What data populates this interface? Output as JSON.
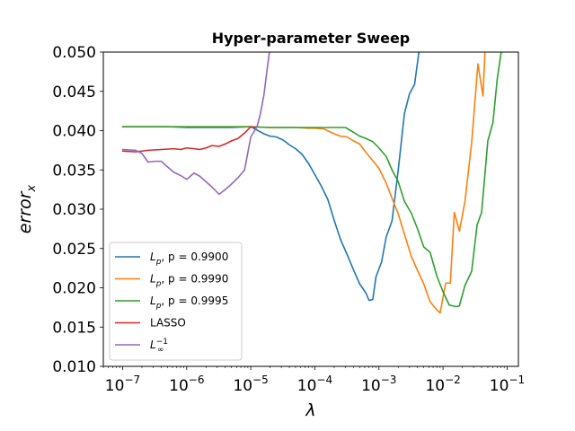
{
  "chart_data": {
    "type": "line",
    "title": "Hyper-parameter Sweep",
    "xlabel": "λ",
    "ylabel_base": "error",
    "ylabel_sub": "x",
    "xscale": "log",
    "xlim": [
      5e-08,
      0.15
    ],
    "ylim": [
      0.01,
      0.05
    ],
    "xticks": [
      {
        "value": 1e-07,
        "label": "10",
        "exp": "−7"
      },
      {
        "value": 1e-06,
        "label": "10",
        "exp": "−6"
      },
      {
        "value": 1e-05,
        "label": "10",
        "exp": "−5"
      },
      {
        "value": 0.0001,
        "label": "10",
        "exp": "−4"
      },
      {
        "value": 0.001,
        "label": "10",
        "exp": "−3"
      },
      {
        "value": 0.01,
        "label": "10",
        "exp": "−2"
      },
      {
        "value": 0.1,
        "label": "10",
        "exp": "−1"
      }
    ],
    "yticks": [
      {
        "value": 0.01,
        "label": "0.010"
      },
      {
        "value": 0.015,
        "label": "0.015"
      },
      {
        "value": 0.02,
        "label": "0.020"
      },
      {
        "value": 0.025,
        "label": "0.025"
      },
      {
        "value": 0.03,
        "label": "0.030"
      },
      {
        "value": 0.035,
        "label": "0.035"
      },
      {
        "value": 0.04,
        "label": "0.040"
      },
      {
        "value": 0.045,
        "label": "0.045"
      },
      {
        "value": 0.05,
        "label": "0.050"
      }
    ],
    "legend_position": "lower-left",
    "grid": false,
    "series": [
      {
        "name": "L_p, p = 0.9900",
        "legend_main": "L",
        "legend_sub": "p",
        "legend_rest": ", p = 0.9900",
        "color": "#1f77b4",
        "points": [
          [
            1e-07,
            0.0405
          ],
          [
            2e-07,
            0.0405
          ],
          [
            5e-07,
            0.0405
          ],
          [
            1e-06,
            0.0404
          ],
          [
            2e-06,
            0.0404
          ],
          [
            5e-06,
            0.0404
          ],
          [
            1e-05,
            0.0405
          ],
          [
            1.3e-05,
            0.04
          ],
          [
            1.6e-05,
            0.0396
          ],
          [
            2e-05,
            0.0393
          ],
          [
            2.5e-05,
            0.0392
          ],
          [
            3.2e-05,
            0.0388
          ],
          [
            4e-05,
            0.0382
          ],
          [
            5e-05,
            0.0377
          ],
          [
            6.3e-05,
            0.037
          ],
          [
            8e-05,
            0.0358
          ],
          [
            0.0001,
            0.0344
          ],
          [
            0.000125,
            0.033
          ],
          [
            0.00016,
            0.0312
          ],
          [
            0.0002,
            0.0286
          ],
          [
            0.00025,
            0.0262
          ],
          [
            0.00032,
            0.0242
          ],
          [
            0.0004,
            0.0223
          ],
          [
            0.0005,
            0.0205
          ],
          [
            0.00063,
            0.0193
          ],
          [
            0.0007,
            0.0184
          ],
          [
            0.0008,
            0.0185
          ],
          [
            0.0009,
            0.0214
          ],
          [
            0.0011,
            0.0233
          ],
          [
            0.0013,
            0.0265
          ],
          [
            0.0016,
            0.0285
          ],
          [
            0.002,
            0.035
          ],
          [
            0.0025,
            0.0422
          ],
          [
            0.003,
            0.0447
          ],
          [
            0.0036,
            0.0459
          ],
          [
            0.0042,
            0.05
          ],
          [
            0.0045,
            0.0515
          ]
        ]
      },
      {
        "name": "L_p, p = 0.9990",
        "legend_main": "L",
        "legend_sub": "p",
        "legend_rest": ", p = 0.9990",
        "color": "#ff7f0e",
        "points": [
          [
            1e-07,
            0.0405
          ],
          [
            2e-07,
            0.0405
          ],
          [
            5e-07,
            0.0405
          ],
          [
            1e-06,
            0.0405
          ],
          [
            2e-06,
            0.0405
          ],
          [
            5e-06,
            0.0405
          ],
          [
            1e-05,
            0.0405
          ],
          [
            2e-05,
            0.0404
          ],
          [
            5e-05,
            0.0404
          ],
          [
            8e-05,
            0.0403
          ],
          [
            0.0001,
            0.0403
          ],
          [
            0.00014,
            0.0402
          ],
          [
            0.0002,
            0.0396
          ],
          [
            0.00025,
            0.0393
          ],
          [
            0.00032,
            0.0392
          ],
          [
            0.0004,
            0.0387
          ],
          [
            0.0005,
            0.0383
          ],
          [
            0.00063,
            0.0372
          ],
          [
            0.0008,
            0.0362
          ],
          [
            0.001,
            0.0352
          ],
          [
            0.0013,
            0.0333
          ],
          [
            0.0016,
            0.0314
          ],
          [
            0.002,
            0.0294
          ],
          [
            0.0025,
            0.0268
          ],
          [
            0.0032,
            0.024
          ],
          [
            0.004,
            0.0222
          ],
          [
            0.005,
            0.0205
          ],
          [
            0.0063,
            0.0182
          ],
          [
            0.008,
            0.0172
          ],
          [
            0.009,
            0.0168
          ],
          [
            0.011,
            0.0206
          ],
          [
            0.013,
            0.0206
          ],
          [
            0.015,
            0.0296
          ],
          [
            0.018,
            0.0272
          ],
          [
            0.022,
            0.031
          ],
          [
            0.028,
            0.0385
          ],
          [
            0.035,
            0.0485
          ],
          [
            0.042,
            0.0444
          ],
          [
            0.046,
            0.0515
          ]
        ]
      },
      {
        "name": "L_p, p = 0.9995",
        "legend_main": "L",
        "legend_sub": "p",
        "legend_rest": ", p = 0.9995",
        "color": "#2ca02c",
        "points": [
          [
            1e-07,
            0.0405
          ],
          [
            2e-07,
            0.0405
          ],
          [
            5e-07,
            0.0405
          ],
          [
            1e-06,
            0.0405
          ],
          [
            2e-06,
            0.0405
          ],
          [
            5e-06,
            0.0405
          ],
          [
            1e-05,
            0.0405
          ],
          [
            2e-05,
            0.0404
          ],
          [
            5e-05,
            0.0404
          ],
          [
            0.0001,
            0.0404
          ],
          [
            0.0002,
            0.0404
          ],
          [
            0.0003,
            0.0404
          ],
          [
            0.0004,
            0.0398
          ],
          [
            0.0005,
            0.0393
          ],
          [
            0.00063,
            0.039
          ],
          [
            0.0008,
            0.0386
          ],
          [
            0.001,
            0.0378
          ],
          [
            0.0013,
            0.0367
          ],
          [
            0.0016,
            0.035
          ],
          [
            0.002,
            0.0335
          ],
          [
            0.0025,
            0.031
          ],
          [
            0.0032,
            0.0295
          ],
          [
            0.004,
            0.0275
          ],
          [
            0.005,
            0.0252
          ],
          [
            0.0063,
            0.0245
          ],
          [
            0.008,
            0.0215
          ],
          [
            0.01,
            0.0195
          ],
          [
            0.0125,
            0.0178
          ],
          [
            0.016,
            0.0176
          ],
          [
            0.018,
            0.0177
          ],
          [
            0.022,
            0.0203
          ],
          [
            0.028,
            0.0221
          ],
          [
            0.034,
            0.028
          ],
          [
            0.04,
            0.0296
          ],
          [
            0.05,
            0.0387
          ],
          [
            0.06,
            0.041
          ],
          [
            0.07,
            0.0465
          ],
          [
            0.08,
            0.0498
          ],
          [
            0.09,
            0.0515
          ]
        ]
      },
      {
        "name": "LASSO",
        "color": "#d62728",
        "points": [
          [
            1e-07,
            0.0374
          ],
          [
            1.6e-07,
            0.0373
          ],
          [
            2.5e-07,
            0.0375
          ],
          [
            4e-07,
            0.0376
          ],
          [
            6.3e-07,
            0.0377
          ],
          [
            8e-07,
            0.0376
          ],
          [
            1e-06,
            0.0378
          ],
          [
            1.3e-06,
            0.0377
          ],
          [
            1.6e-06,
            0.0376
          ],
          [
            2e-06,
            0.0378
          ],
          [
            2.5e-06,
            0.0381
          ],
          [
            3.2e-06,
            0.038
          ],
          [
            4e-06,
            0.0383
          ],
          [
            5e-06,
            0.0387
          ],
          [
            6.3e-06,
            0.039
          ],
          [
            8e-06,
            0.0397
          ],
          [
            1e-05,
            0.0405
          ],
          [
            1.2e-05,
            0.0404
          ]
        ]
      },
      {
        "name": "L_∞^-1",
        "legend_main": "L",
        "legend_sub": "∞",
        "legend_sup": "−1",
        "color": "#9467bd",
        "points": [
          [
            1e-07,
            0.0376
          ],
          [
            1.6e-07,
            0.0375
          ],
          [
            2e-07,
            0.0371
          ],
          [
            2.5e-07,
            0.036
          ],
          [
            3.2e-07,
            0.0361
          ],
          [
            4e-07,
            0.0361
          ],
          [
            5e-07,
            0.0354
          ],
          [
            6.3e-07,
            0.0347
          ],
          [
            8e-07,
            0.0343
          ],
          [
            1e-06,
            0.0338
          ],
          [
            1.3e-06,
            0.0346
          ],
          [
            1.6e-06,
            0.0342
          ],
          [
            2e-06,
            0.0335
          ],
          [
            2.5e-06,
            0.0328
          ],
          [
            3.2e-06,
            0.0319
          ],
          [
            4e-06,
            0.0325
          ],
          [
            5e-06,
            0.0332
          ],
          [
            6.3e-06,
            0.034
          ],
          [
            8e-06,
            0.035
          ],
          [
            1e-05,
            0.0392
          ],
          [
            1.25e-05,
            0.0405
          ],
          [
            1.4e-05,
            0.042
          ],
          [
            1.6e-05,
            0.0445
          ],
          [
            1.8e-05,
            0.0478
          ],
          [
            1.95e-05,
            0.05
          ],
          [
            2.1e-05,
            0.0515
          ]
        ]
      }
    ]
  }
}
